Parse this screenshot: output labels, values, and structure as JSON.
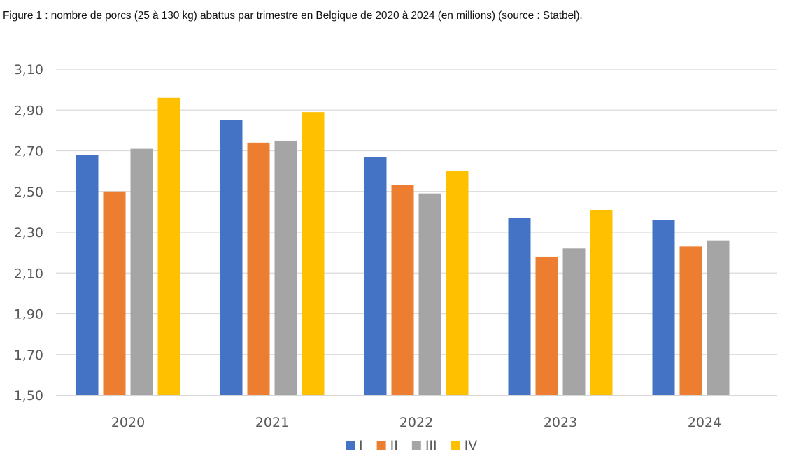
{
  "caption": "Figure 1 : nombre de porcs (25 à 130 kg) abattus par trimestre en Belgique de 2020 à 2024 (en millions) (source : Statbel).",
  "chart_data": {
    "type": "bar",
    "title": "",
    "xlabel": "",
    "ylabel": "",
    "categories": [
      "2020",
      "2021",
      "2022",
      "2023",
      "2024"
    ],
    "ylim": [
      1.5,
      3.1
    ],
    "yticks": [
      "1,50",
      "1,70",
      "1,90",
      "2,10",
      "2,30",
      "2,50",
      "2,70",
      "2,90",
      "3,10"
    ],
    "yticks_values": [
      1.5,
      1.7,
      1.9,
      2.1,
      2.3,
      2.5,
      2.7,
      2.9,
      3.1
    ],
    "grid": true,
    "legend_position": "bottom",
    "series": [
      {
        "name": "I",
        "color": "#4472C4",
        "values": [
          2.68,
          2.85,
          2.67,
          2.37,
          2.36
        ]
      },
      {
        "name": "II",
        "color": "#ED7D31",
        "values": [
          2.5,
          2.74,
          2.53,
          2.18,
          2.23
        ]
      },
      {
        "name": "III",
        "color": "#A5A5A5",
        "values": [
          2.71,
          2.75,
          2.49,
          2.22,
          2.26
        ]
      },
      {
        "name": "IV",
        "color": "#FFC000",
        "values": [
          2.96,
          2.89,
          2.6,
          2.41,
          null
        ]
      }
    ]
  }
}
